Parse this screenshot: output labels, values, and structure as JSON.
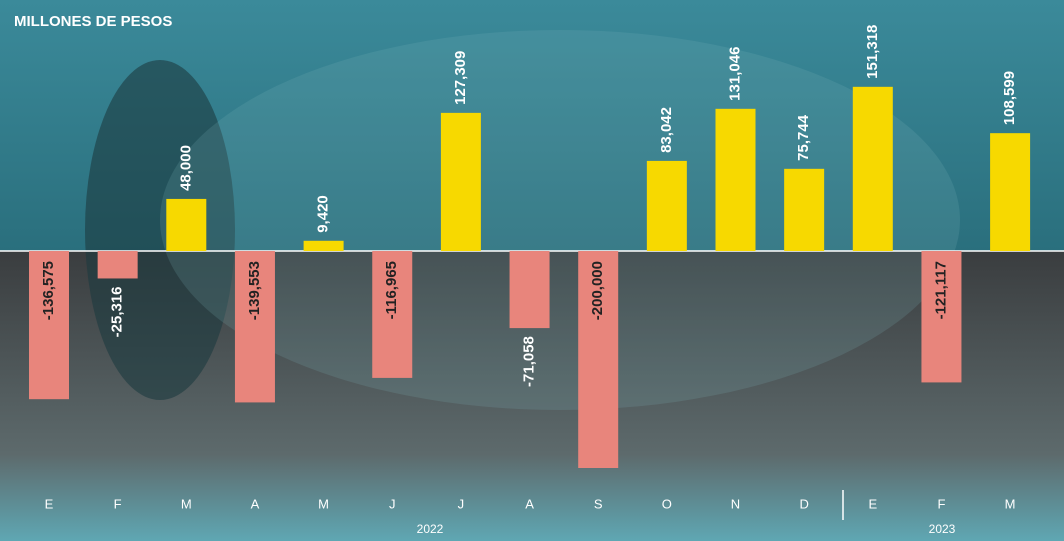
{
  "chart_data": {
    "type": "bar",
    "title": "MILLONES DE PESOS",
    "categories": [
      "E",
      "F",
      "M",
      "A",
      "M",
      "J",
      "J",
      "A",
      "S",
      "O",
      "N",
      "D",
      "E",
      "F",
      "M"
    ],
    "values": [
      -136575,
      -25316,
      48000,
      -139553,
      9420,
      -116965,
      127309,
      -71058,
      -200000,
      83042,
      131046,
      75744,
      151318,
      -121117,
      108599
    ],
    "value_labels": [
      "-136,575",
      "-25,316",
      "48,000",
      "-139,553",
      "9,420",
      "-116,965",
      "127,309",
      "-71,058",
      "-200,000",
      "83,042",
      "131,046",
      "75,744",
      "151,318",
      "-121,117",
      "108,599"
    ],
    "year_labels": [
      "2022",
      "2023"
    ],
    "positive_color": "#f7d900",
    "negative_color": "#e8857c"
  }
}
